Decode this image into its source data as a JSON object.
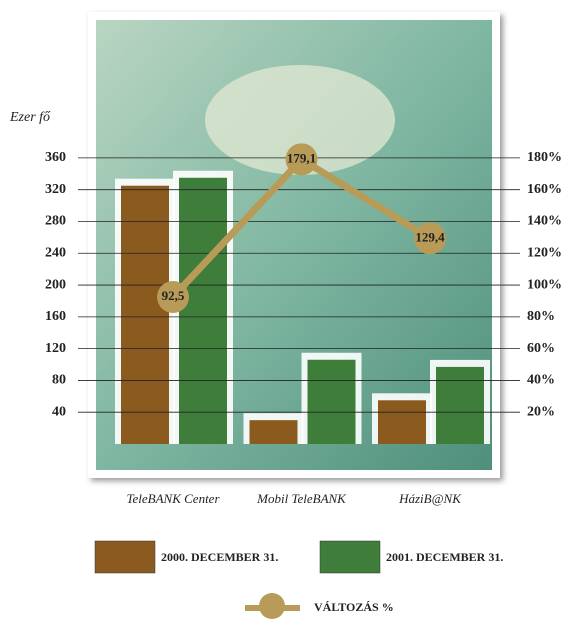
{
  "chart_data": {
    "type": "bar_line",
    "y_axis_label": "Ezer fő",
    "categories": [
      "TeleBANK Center",
      "Mobil TeleBANK",
      "HáziB@NK"
    ],
    "series": [
      {
        "name": "2000. DECEMBER 31.",
        "color": "#8a5a1e",
        "values": [
          325,
          30,
          55
        ]
      },
      {
        "name": "2001. DECEMBER 31.",
        "color": "#3f7d3a",
        "values": [
          335,
          106,
          97
        ]
      },
      {
        "name": "VÁLTOZÁS %",
        "color": "#b99b58",
        "axis": "y2",
        "values": [
          92.5,
          179.1,
          129.4
        ],
        "value_labels": [
          "92,5",
          "179,1",
          "129,4"
        ]
      }
    ],
    "ylim": [
      0,
      380
    ],
    "yticks": [
      40,
      80,
      120,
      160,
      200,
      240,
      280,
      320,
      360
    ],
    "y2lim": [
      0,
      190
    ],
    "y2ticks": [
      {
        "value": 20,
        "label": "20%"
      },
      {
        "value": 40,
        "label": "40%"
      },
      {
        "value": 60,
        "label": "60%"
      },
      {
        "value": 80,
        "label": "80%"
      },
      {
        "value": 100,
        "label": "100%"
      },
      {
        "value": 120,
        "label": "120%"
      },
      {
        "value": 140,
        "label": "140%"
      },
      {
        "value": 160,
        "label": "160%"
      },
      {
        "value": 180,
        "label": "180%"
      }
    ],
    "grid": true
  }
}
